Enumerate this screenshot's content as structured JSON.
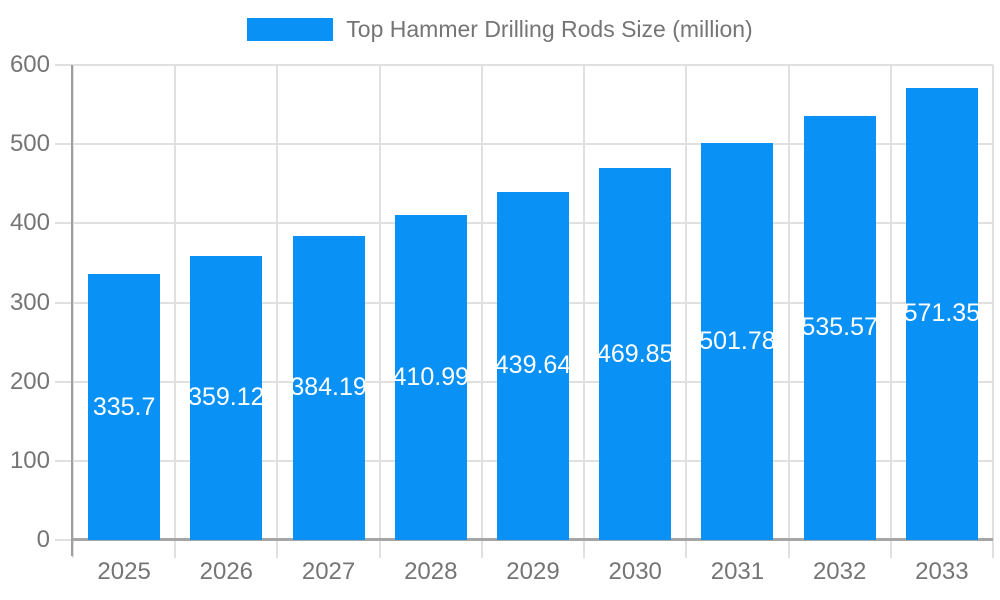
{
  "legend": {
    "label": "Top Hammer Drilling Rods Size (million)"
  },
  "chart_data": {
    "type": "bar",
    "title": "Top Hammer Drilling Rods Size (million)",
    "categories": [
      "2025",
      "2026",
      "2027",
      "2028",
      "2029",
      "2030",
      "2031",
      "2032",
      "2033"
    ],
    "series": [
      {
        "name": "Top Hammer Drilling Rods Size (million)",
        "values": [
          335.7,
          359.12,
          384.19,
          410.99,
          439.64,
          469.85,
          501.78,
          535.57,
          571.35
        ]
      }
    ],
    "bar_labels": [
      "335.7",
      "359.12",
      "384.19",
      "410.99",
      "439.64",
      "469.85",
      "501.78",
      "535.57",
      "571.35"
    ],
    "xlabel": "",
    "ylabel": "",
    "ylim": [
      0,
      600
    ],
    "y_ticks": [
      "0",
      "100",
      "200",
      "300",
      "400",
      "500",
      "600"
    ],
    "grid": true,
    "legend_position": "top",
    "colors": {
      "bar": "#0991f5",
      "grid_line": "#e0e0e0",
      "y_axis_line": "#9e9e9e",
      "x_axis_line": "#a6a6a6",
      "axis_text": "#757575",
      "bar_label_text": "#ffffff"
    }
  }
}
